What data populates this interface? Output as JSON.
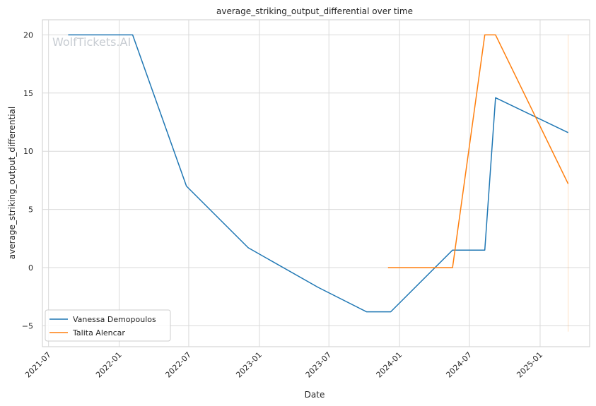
{
  "chart_data": {
    "type": "line",
    "title": "average_striking_output_differential over time",
    "xlabel": "Date",
    "ylabel": "average_striking_output_differential",
    "watermark": "WolfTickets.AI",
    "x_ticks": [
      "2021-07",
      "2022-01",
      "2022-07",
      "2023-01",
      "2023-07",
      "2024-01",
      "2024-07",
      "2025-01"
    ],
    "y_ticks": [
      -5,
      0,
      5,
      10,
      15,
      20
    ],
    "xlim": [
      "2021-06-15",
      "2025-05-10"
    ],
    "ylim": [
      -6.8,
      21.3
    ],
    "grid": true,
    "legend_position": "lower-left",
    "series": [
      {
        "name": "Vanessa Demopoulos",
        "color": "#1f77b4",
        "points": [
          {
            "x": "2021-08-21",
            "y": 20.0
          },
          {
            "x": "2022-02-05",
            "y": 20.0
          },
          {
            "x": "2022-06-25",
            "y": 7.0
          },
          {
            "x": "2022-12-03",
            "y": 1.7
          },
          {
            "x": "2023-06-03",
            "y": -1.7
          },
          {
            "x": "2023-10-07",
            "y": -3.8
          },
          {
            "x": "2023-12-09",
            "y": -3.8
          },
          {
            "x": "2024-05-18",
            "y": 1.5
          },
          {
            "x": "2024-08-10",
            "y": 1.5
          },
          {
            "x": "2024-09-07",
            "y": 14.6
          },
          {
            "x": "2025-03-15",
            "y": 11.6
          }
        ]
      },
      {
        "name": "Talita Alencar",
        "color": "#ff7f0e",
        "points": [
          {
            "x": "2023-12-02",
            "y": 0.0
          },
          {
            "x": "2024-05-18",
            "y": 0.0
          },
          {
            "x": "2024-08-10",
            "y": 20.0
          },
          {
            "x": "2024-09-07",
            "y": 20.0
          },
          {
            "x": "2025-03-15",
            "y": 7.2
          }
        ]
      }
    ],
    "annotations": [
      {
        "type": "vertical-line",
        "x": "2025-03-15",
        "y_from": -5.5,
        "y_to": 20.0,
        "color": "#ff7f0e"
      }
    ]
  }
}
